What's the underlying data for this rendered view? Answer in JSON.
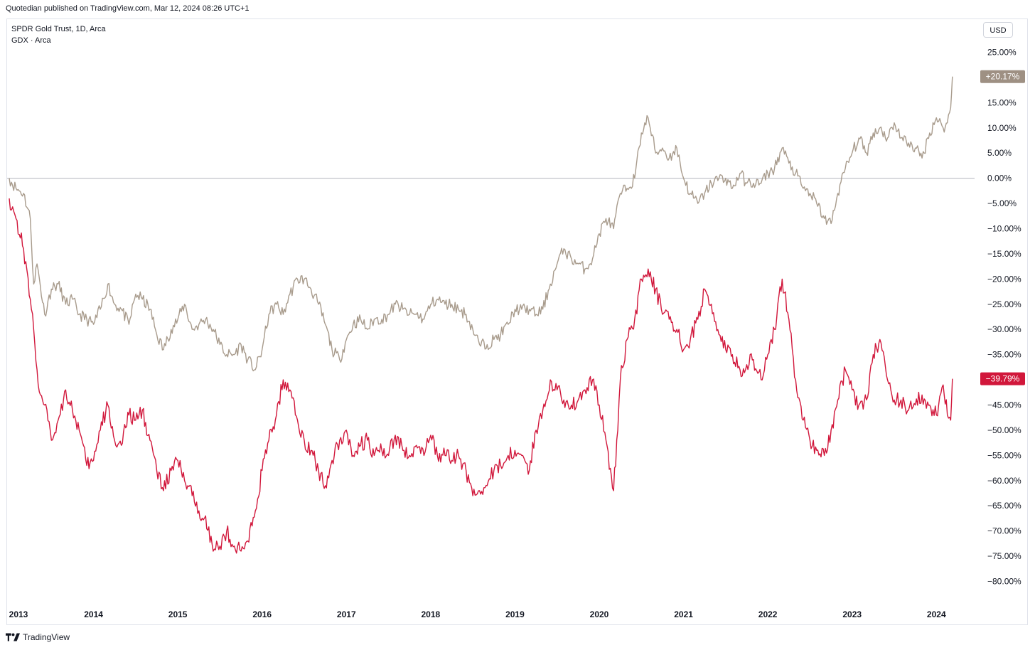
{
  "header": {
    "published": "Quotedian published on TradingView.com, Mar 12, 2024 08:26 UTC+1"
  },
  "legend": {
    "line1": "SPDR Gold Trust, 1D, Arca",
    "line2": "GDX · Arca"
  },
  "currency": "USD",
  "footer": {
    "brand": "TradingView"
  },
  "colors": {
    "gld": "#a89b8c",
    "gdx": "#d1173b",
    "zero_line": "#b2b5be",
    "gld_label_bg": "#9e9083",
    "gdx_label_bg": "#d1173b"
  },
  "chart_data": {
    "type": "line",
    "title": "",
    "xlabel": "",
    "ylabel": "",
    "y_unit": "%",
    "ylim": [
      -85,
      28
    ],
    "xlim": [
      2013.0,
      2024.45
    ],
    "x_ticks": [
      {
        "value": 2013,
        "label": "2013"
      },
      {
        "value": 2014,
        "label": "2014"
      },
      {
        "value": 2015,
        "label": "2015"
      },
      {
        "value": 2016,
        "label": "2016"
      },
      {
        "value": 2017,
        "label": "2017"
      },
      {
        "value": 2018,
        "label": "2018"
      },
      {
        "value": 2019,
        "label": "2019"
      },
      {
        "value": 2020,
        "label": "2020"
      },
      {
        "value": 2021,
        "label": "2021"
      },
      {
        "value": 2022,
        "label": "2022"
      },
      {
        "value": 2023,
        "label": "2023"
      },
      {
        "value": 2024,
        "label": "2024"
      }
    ],
    "y_ticks": [
      {
        "value": 25,
        "label": "25.00%"
      },
      {
        "value": 15,
        "label": "15.00%"
      },
      {
        "value": 10,
        "label": "10.00%"
      },
      {
        "value": 5,
        "label": "5.00%"
      },
      {
        "value": 0,
        "label": "0.00%"
      },
      {
        "value": -5,
        "label": "−5.00%"
      },
      {
        "value": -10,
        "label": "−10.00%"
      },
      {
        "value": -15,
        "label": "−15.00%"
      },
      {
        "value": -20,
        "label": "−20.00%"
      },
      {
        "value": -25,
        "label": "−25.00%"
      },
      {
        "value": -30,
        "label": "−30.00%"
      },
      {
        "value": -35,
        "label": "−35.00%"
      },
      {
        "value": -45,
        "label": "−45.00%"
      },
      {
        "value": -50,
        "label": "−50.00%"
      },
      {
        "value": -55,
        "label": "−55.00%"
      },
      {
        "value": -60,
        "label": "−60.00%"
      },
      {
        "value": -65,
        "label": "−65.00%"
      },
      {
        "value": -70,
        "label": "−70.00%"
      },
      {
        "value": -75,
        "label": "−75.00%"
      },
      {
        "value": -80,
        "label": "−80.00%"
      }
    ],
    "series": [
      {
        "key": "gld",
        "color": "#a89b8c",
        "last_label": "+20.17%",
        "x": [
          2013.0,
          2013.08,
          2013.17,
          2013.25,
          2013.29,
          2013.33,
          2013.42,
          2013.5,
          2013.58,
          2013.67,
          2013.75,
          2013.83,
          2013.92,
          2014.0,
          2014.08,
          2014.17,
          2014.25,
          2014.33,
          2014.42,
          2014.5,
          2014.58,
          2014.67,
          2014.75,
          2014.83,
          2014.92,
          2015.0,
          2015.08,
          2015.17,
          2015.25,
          2015.33,
          2015.42,
          2015.5,
          2015.58,
          2015.67,
          2015.75,
          2015.83,
          2015.92,
          2016.0,
          2016.08,
          2016.17,
          2016.25,
          2016.33,
          2016.42,
          2016.5,
          2016.58,
          2016.67,
          2016.75,
          2016.83,
          2016.92,
          2017.0,
          2017.08,
          2017.17,
          2017.25,
          2017.33,
          2017.42,
          2017.5,
          2017.58,
          2017.67,
          2017.75,
          2017.83,
          2017.92,
          2018.0,
          2018.08,
          2018.17,
          2018.25,
          2018.33,
          2018.42,
          2018.5,
          2018.58,
          2018.67,
          2018.75,
          2018.83,
          2018.92,
          2019.0,
          2019.08,
          2019.17,
          2019.25,
          2019.33,
          2019.42,
          2019.5,
          2019.58,
          2019.67,
          2019.75,
          2019.83,
          2019.92,
          2020.0,
          2020.08,
          2020.17,
          2020.25,
          2020.33,
          2020.42,
          2020.5,
          2020.58,
          2020.67,
          2020.75,
          2020.83,
          2020.92,
          2021.0,
          2021.08,
          2021.17,
          2021.25,
          2021.33,
          2021.42,
          2021.5,
          2021.58,
          2021.67,
          2021.75,
          2021.83,
          2021.92,
          2022.0,
          2022.08,
          2022.17,
          2022.25,
          2022.33,
          2022.42,
          2022.5,
          2022.58,
          2022.67,
          2022.75,
          2022.83,
          2022.92,
          2023.0,
          2023.08,
          2023.17,
          2023.25,
          2023.33,
          2023.42,
          2023.5,
          2023.58,
          2023.67,
          2023.75,
          2023.83,
          2023.92,
          2024.0,
          2024.08,
          2024.13,
          2024.17,
          2024.19
        ],
        "y": [
          0,
          -2,
          -3,
          -8,
          -21,
          -17,
          -27,
          -22,
          -21,
          -25,
          -24,
          -27,
          -28,
          -29,
          -26,
          -21,
          -25,
          -26,
          -29,
          -23,
          -24,
          -26,
          -31,
          -34,
          -30,
          -28,
          -25,
          -30,
          -29,
          -28,
          -30,
          -33,
          -35,
          -35,
          -33,
          -36,
          -38,
          -34,
          -27,
          -25,
          -27,
          -23,
          -20,
          -20,
          -22,
          -25,
          -29,
          -34,
          -36,
          -32,
          -29,
          -28,
          -30,
          -28,
          -28,
          -27,
          -25,
          -26,
          -27,
          -27,
          -28,
          -25,
          -24,
          -25,
          -25,
          -26,
          -27,
          -30,
          -33,
          -33,
          -32,
          -31,
          -29,
          -26,
          -26,
          -26,
          -27,
          -26,
          -21,
          -17,
          -14,
          -16,
          -17,
          -18,
          -16,
          -11,
          -8,
          -10,
          -3,
          -2,
          0,
          9,
          12,
          5,
          6,
          4,
          6,
          0,
          -3,
          -5,
          -3,
          -1,
          0,
          0,
          -2,
          1,
          -1,
          -1,
          -1,
          1,
          2,
          6,
          3,
          1,
          -2,
          -3,
          -5,
          -8,
          -9,
          -3,
          2,
          5,
          8,
          5,
          9,
          10,
          8,
          11,
          8,
          7,
          6,
          4,
          9,
          12,
          10,
          11,
          14,
          20.17
        ],
        "noise": 1.2
      },
      {
        "key": "gdx",
        "color": "#d1173b",
        "last_label": "−39.79%",
        "x": [
          2013.0,
          2013.08,
          2013.17,
          2013.25,
          2013.29,
          2013.33,
          2013.37,
          2013.42,
          2013.5,
          2013.58,
          2013.67,
          2013.75,
          2013.83,
          2013.92,
          2014.0,
          2014.08,
          2014.17,
          2014.25,
          2014.33,
          2014.42,
          2014.5,
          2014.58,
          2014.67,
          2014.75,
          2014.83,
          2014.92,
          2015.0,
          2015.08,
          2015.17,
          2015.25,
          2015.33,
          2015.42,
          2015.5,
          2015.58,
          2015.67,
          2015.75,
          2015.83,
          2015.92,
          2016.0,
          2016.08,
          2016.17,
          2016.25,
          2016.33,
          2016.42,
          2016.5,
          2016.58,
          2016.67,
          2016.75,
          2016.83,
          2016.92,
          2017.0,
          2017.08,
          2017.17,
          2017.25,
          2017.33,
          2017.42,
          2017.5,
          2017.58,
          2017.67,
          2017.75,
          2017.83,
          2017.92,
          2018.0,
          2018.08,
          2018.17,
          2018.25,
          2018.33,
          2018.42,
          2018.5,
          2018.58,
          2018.67,
          2018.75,
          2018.83,
          2018.92,
          2019.0,
          2019.08,
          2019.17,
          2019.25,
          2019.33,
          2019.42,
          2019.5,
          2019.58,
          2019.67,
          2019.75,
          2019.83,
          2019.92,
          2020.0,
          2020.08,
          2020.17,
          2020.22,
          2020.25,
          2020.33,
          2020.42,
          2020.5,
          2020.58,
          2020.67,
          2020.75,
          2020.83,
          2020.92,
          2021.0,
          2021.08,
          2021.17,
          2021.25,
          2021.33,
          2021.42,
          2021.5,
          2021.58,
          2021.67,
          2021.75,
          2021.83,
          2021.92,
          2022.0,
          2022.08,
          2022.17,
          2022.25,
          2022.33,
          2022.42,
          2022.5,
          2022.58,
          2022.67,
          2022.75,
          2022.83,
          2022.92,
          2023.0,
          2023.08,
          2023.17,
          2023.25,
          2023.33,
          2023.42,
          2023.5,
          2023.58,
          2023.67,
          2023.75,
          2023.83,
          2023.92,
          2024.0,
          2024.08,
          2024.13,
          2024.17,
          2024.19
        ],
        "y": [
          -4,
          -8,
          -14,
          -24,
          -30,
          -38,
          -43,
          -45,
          -52,
          -48,
          -42,
          -46,
          -50,
          -57,
          -56,
          -50,
          -45,
          -52,
          -53,
          -47,
          -48,
          -46,
          -52,
          -58,
          -62,
          -58,
          -56,
          -60,
          -63,
          -66,
          -67,
          -74,
          -73,
          -70,
          -73,
          -74,
          -72,
          -66,
          -58,
          -52,
          -47,
          -40,
          -42,
          -48,
          -52,
          -54,
          -58,
          -61,
          -56,
          -52,
          -50,
          -55,
          -53,
          -52,
          -55,
          -54,
          -55,
          -51,
          -54,
          -55,
          -53,
          -55,
          -51,
          -55,
          -55,
          -56,
          -55,
          -58,
          -63,
          -62,
          -61,
          -58,
          -57,
          -55,
          -54,
          -55,
          -58,
          -50,
          -46,
          -40,
          -42,
          -44,
          -45,
          -44,
          -42,
          -40,
          -45,
          -52,
          -62,
          -50,
          -40,
          -32,
          -28,
          -20,
          -18,
          -22,
          -27,
          -28,
          -30,
          -34,
          -32,
          -28,
          -22,
          -25,
          -31,
          -34,
          -35,
          -38,
          -37,
          -36,
          -40,
          -35,
          -30,
          -20,
          -28,
          -40,
          -48,
          -52,
          -54,
          -55,
          -50,
          -44,
          -38,
          -42,
          -45,
          -44,
          -35,
          -32,
          -40,
          -44,
          -44,
          -46,
          -45,
          -43,
          -45,
          -47,
          -41,
          -47,
          -48,
          -39.79
        ],
        "noise": 1.6
      }
    ]
  }
}
